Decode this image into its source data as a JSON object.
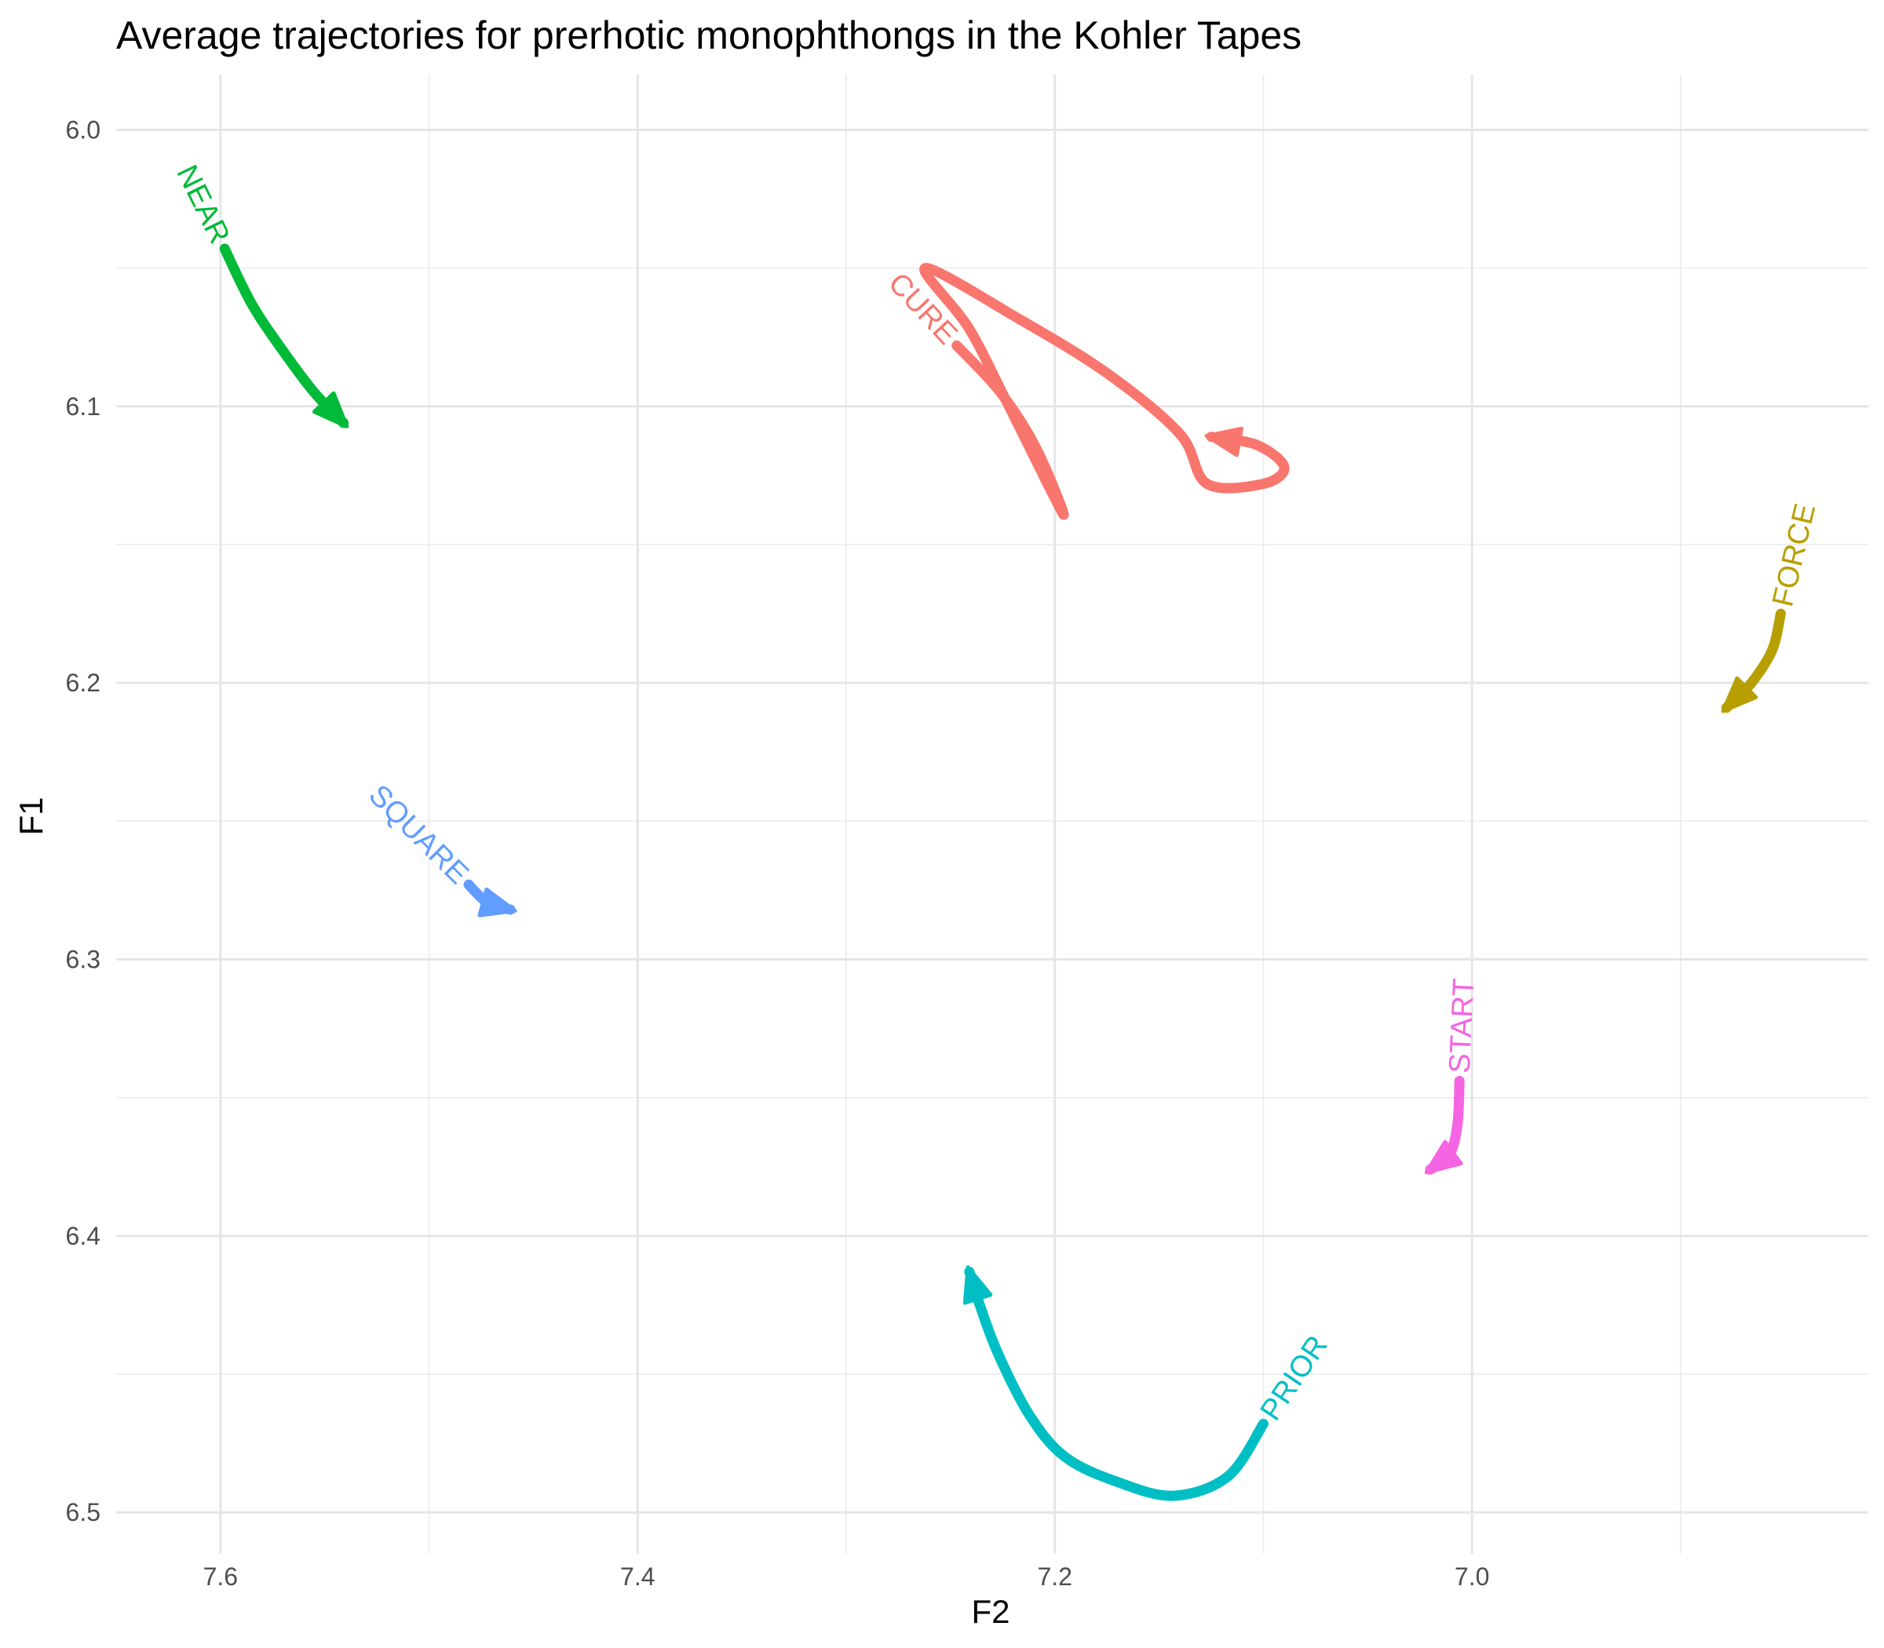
{
  "chart_data": {
    "type": "line",
    "title": "Average trajectories for prerhotic monophthongs in the Kohler Tapes",
    "xlabel": "F2",
    "ylabel": "F1",
    "x_reversed": true,
    "y_reversed": true,
    "xlim": [
      7.65,
      6.81
    ],
    "ylim": [
      5.98,
      6.515
    ],
    "x_ticks": [
      7.6,
      7.4,
      7.2,
      7.0
    ],
    "y_ticks": [
      6.0,
      6.1,
      6.2,
      6.3,
      6.4,
      6.5
    ],
    "x_tick_labels": [
      "7.6",
      "7.4",
      "7.2",
      "7.0"
    ],
    "y_tick_labels": [
      "6.0",
      "6.1",
      "6.2",
      "6.3",
      "6.4",
      "6.5"
    ],
    "grid": true,
    "legend": "none",
    "series": [
      {
        "name": "NEAR",
        "color": "#00BA38",
        "points": [
          [
            7.598,
            6.043
          ],
          [
            7.585,
            6.063
          ],
          [
            7.57,
            6.08
          ],
          [
            7.555,
            6.095
          ],
          [
            7.541,
            6.106
          ]
        ]
      },
      {
        "name": "CURE",
        "color": "#F8766D",
        "points": [
          [
            7.247,
            6.078
          ],
          [
            7.226,
            6.095
          ],
          [
            7.209,
            6.115
          ],
          [
            7.196,
            6.139
          ],
          [
            7.222,
            6.1
          ],
          [
            7.241,
            6.072
          ],
          [
            7.262,
            6.05
          ],
          [
            7.218,
            6.068
          ],
          [
            7.175,
            6.088
          ],
          [
            7.14,
            6.11
          ],
          [
            7.127,
            6.128
          ],
          [
            7.1,
            6.128
          ],
          [
            7.09,
            6.122
          ],
          [
            7.103,
            6.114
          ],
          [
            7.125,
            6.111
          ]
        ]
      },
      {
        "name": "FORCE",
        "color": "#B79F00",
        "points": [
          [
            6.852,
            6.175
          ],
          [
            6.856,
            6.188
          ],
          [
            6.866,
            6.2
          ],
          [
            6.878,
            6.209
          ]
        ]
      },
      {
        "name": "SQUARE",
        "color": "#619CFF",
        "points": [
          [
            7.481,
            6.273
          ],
          [
            7.473,
            6.279
          ],
          [
            7.466,
            6.281
          ],
          [
            7.461,
            6.282
          ]
        ]
      },
      {
        "name": "START",
        "color": "#F564E3",
        "points": [
          [
            7.006,
            6.344
          ],
          [
            7.007,
            6.36
          ],
          [
            7.011,
            6.371
          ],
          [
            7.02,
            6.376
          ]
        ]
      },
      {
        "name": "PRIOR",
        "color": "#00BFC4",
        "points": [
          [
            7.1,
            6.468
          ],
          [
            7.117,
            6.487
          ],
          [
            7.143,
            6.494
          ],
          [
            7.17,
            6.489
          ],
          [
            7.195,
            6.48
          ],
          [
            7.212,
            6.465
          ],
          [
            7.227,
            6.443
          ],
          [
            7.236,
            6.425
          ],
          [
            7.241,
            6.413
          ]
        ]
      }
    ]
  }
}
